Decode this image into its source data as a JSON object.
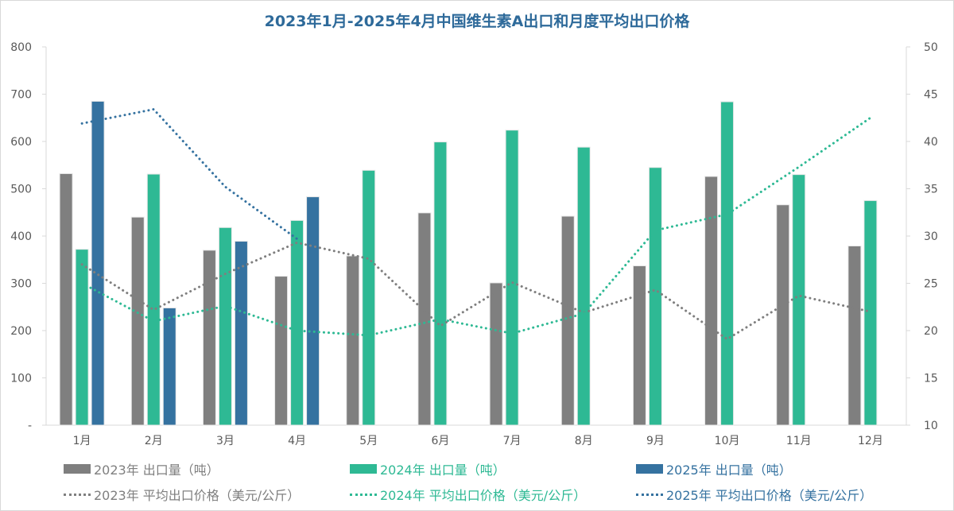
{
  "chart_data": {
    "type": "bar+line",
    "title": "2023年1月-2025年4月中国维生素A出口和月度平均出口价格",
    "categories": [
      "1月",
      "2月",
      "3月",
      "4月",
      "5月",
      "6月",
      "7月",
      "8月",
      "9月",
      "10月",
      "11月",
      "12月"
    ],
    "y_left": {
      "ylim": [
        0,
        800
      ],
      "ticks": [
        "-",
        "100",
        "200",
        "300",
        "400",
        "500",
        "600",
        "700",
        "800"
      ]
    },
    "y_right": {
      "ylim": [
        10,
        50
      ],
      "ticks": [
        "10",
        "15",
        "20",
        "25",
        "30",
        "35",
        "40",
        "45",
        "50"
      ]
    },
    "grid": false,
    "legend_position": "bottom",
    "bar_series": [
      {
        "name": "2023年 出口量（吨）",
        "color": "#7f7f7f",
        "values": [
          532,
          440,
          370,
          315,
          358,
          449,
          301,
          442,
          337,
          526,
          466,
          379
        ]
      },
      {
        "name": "2024年 出口量（吨）",
        "color": "#2eb994",
        "values": [
          372,
          531,
          418,
          433,
          539,
          599,
          624,
          588,
          545,
          684,
          530,
          475
        ]
      },
      {
        "name": "2025年 出口量（吨）",
        "color": "#3572a0",
        "values": [
          685,
          248,
          389,
          483,
          null,
          null,
          null,
          null,
          null,
          null,
          null,
          null
        ]
      }
    ],
    "line_series": [
      {
        "name": "2023年 平均出口价格（美元/公斤）",
        "color": "#7f7f7f",
        "axis": "right",
        "values": [
          27.0,
          22.2,
          26.0,
          29.3,
          27.6,
          20.5,
          25.1,
          21.9,
          24.3,
          19.1,
          23.7,
          22.0
        ]
      },
      {
        "name": "2024年 平均出口价格（美元/公斤）",
        "color": "#2eb994",
        "axis": "right",
        "values": [
          25.0,
          21.0,
          22.6,
          20.0,
          19.5,
          21.2,
          19.7,
          21.8,
          30.6,
          32.3,
          37.3,
          42.5
        ]
      },
      {
        "name": "2025年 平均出口价格（美元/公斤）",
        "color": "#3572a0",
        "axis": "right",
        "values": [
          41.9,
          43.4,
          35.2,
          29.7,
          null,
          null,
          null,
          null,
          null,
          null,
          null,
          null
        ]
      }
    ]
  }
}
